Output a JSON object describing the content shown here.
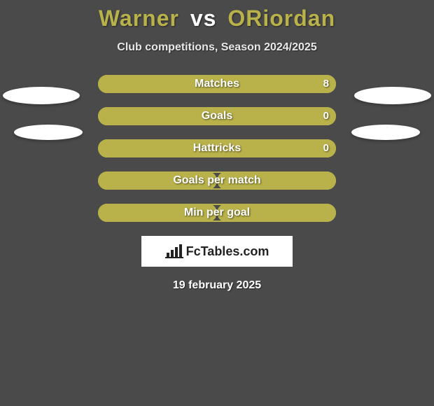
{
  "title": {
    "left": "Warner",
    "vs": "vs",
    "right": "ORiordan",
    "left_color": "#b9b24a",
    "right_color": "#b9b24a"
  },
  "subtitle": "Club competitions, Season 2024/2025",
  "bars": {
    "track_width": 340,
    "track_height": 26,
    "border_radius": 13,
    "label_fontsize": 16,
    "value_fontsize": 15,
    "left_color": "#b9b24a",
    "right_color": "#b9b24a",
    "items": [
      {
        "label": "Matches",
        "left": "",
        "right": "8",
        "left_pct": 0,
        "right_pct": 100,
        "show_left": false,
        "show_right": true
      },
      {
        "label": "Goals",
        "left": "",
        "right": "0",
        "left_pct": 0,
        "right_pct": 100,
        "show_left": false,
        "show_right": true
      },
      {
        "label": "Hattricks",
        "left": "",
        "right": "0",
        "left_pct": 0,
        "right_pct": 100,
        "show_left": false,
        "show_right": true
      },
      {
        "label": "Goals per match",
        "left": "",
        "right": "",
        "left_pct": 50,
        "right_pct": 50,
        "show_left": false,
        "show_right": false
      },
      {
        "label": "Min per goal",
        "left": "",
        "right": "",
        "left_pct": 50,
        "right_pct": 50,
        "show_left": false,
        "show_right": false
      }
    ]
  },
  "ellipses": {
    "color": "#ffffff",
    "row1": {
      "width": 110,
      "height": 25
    },
    "row2": {
      "width": 98,
      "height": 22
    }
  },
  "brand": {
    "text": "FcTables.com",
    "box_bg": "#ffffff",
    "text_color": "#222222",
    "icon_color": "#222222"
  },
  "date": "19 february 2025",
  "background_color": "#4a4a4a"
}
